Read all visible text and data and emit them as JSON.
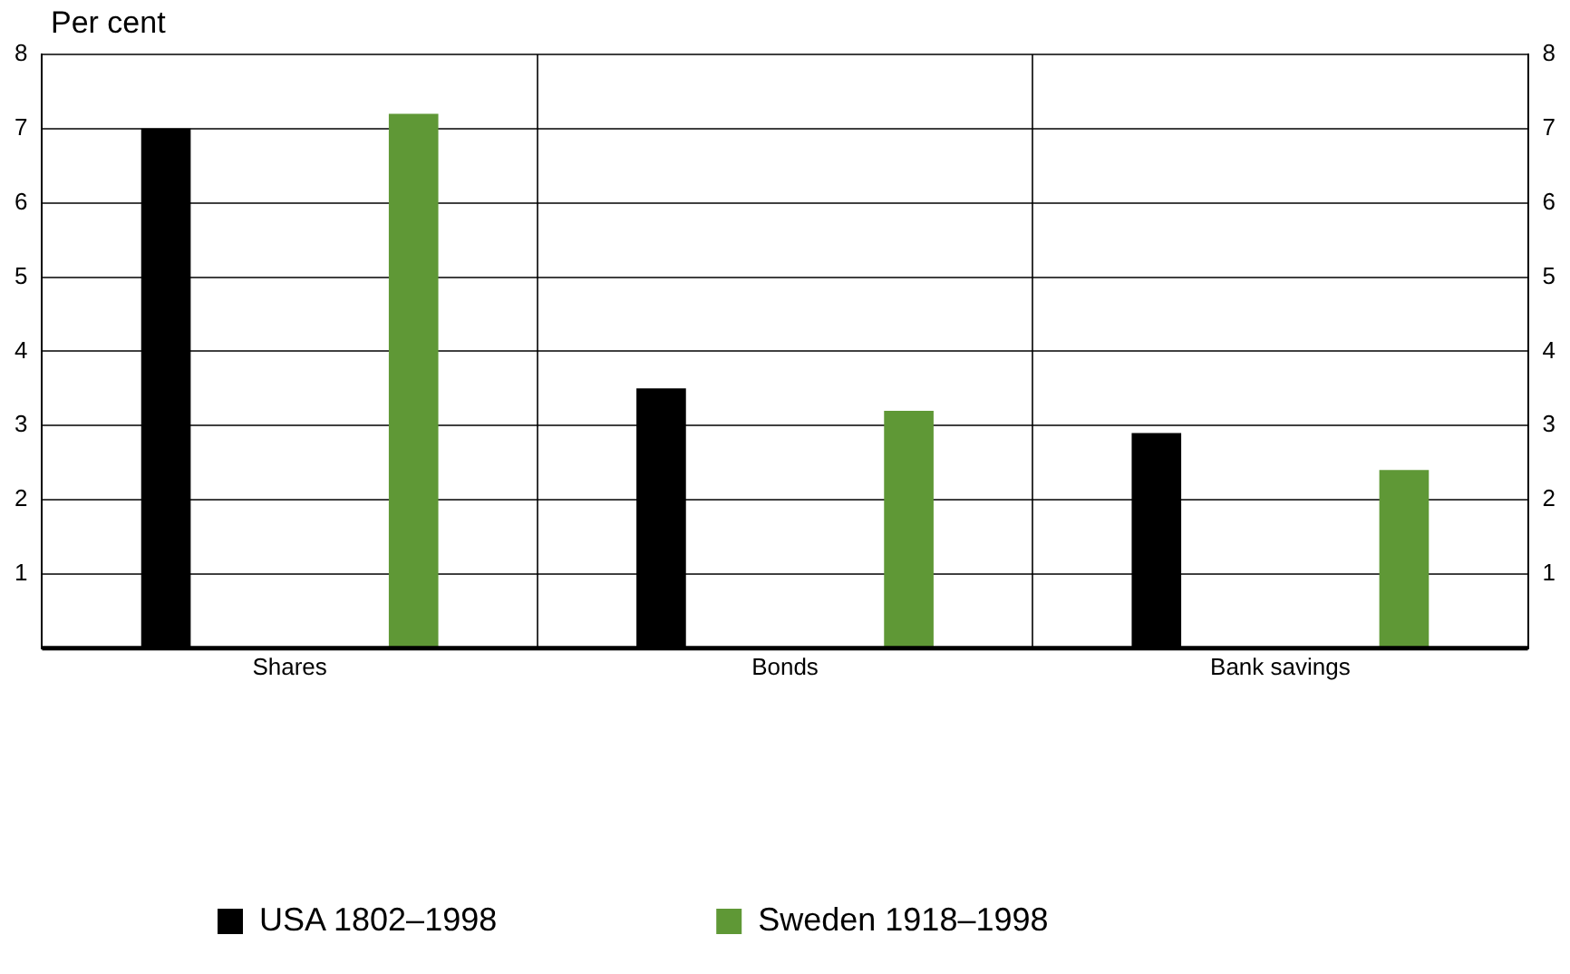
{
  "chart_data": {
    "type": "bar",
    "ylabel": "Per cent",
    "categories": [
      "Shares",
      "Bonds",
      "Bank savings"
    ],
    "series": [
      {
        "name": "USA 1802–1998",
        "color": "#000000",
        "values": [
          7.0,
          3.5,
          2.9
        ]
      },
      {
        "name": "Sweden 1918–1998",
        "color": "#5f9836",
        "values": [
          7.2,
          3.2,
          2.4
        ]
      }
    ],
    "ylim": [
      0,
      8
    ],
    "yticks": [
      1,
      2,
      3,
      4,
      5,
      6,
      7,
      8
    ],
    "y2lim": [
      0,
      8
    ],
    "y2ticks": [
      1,
      2,
      3,
      4,
      5,
      6,
      7,
      8
    ],
    "grid": true,
    "legend": "bottom left"
  }
}
